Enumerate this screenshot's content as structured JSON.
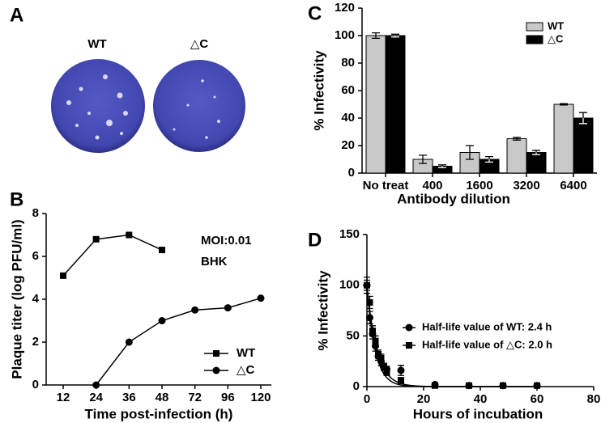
{
  "figure_a": {
    "panel_label": "A",
    "plates": [
      "WT",
      "△C"
    ]
  },
  "chart_data": [
    {
      "type": "line",
      "panel_label": "B",
      "x_label": "Time post-infection (h)",
      "y_label": "Plaque titer (log PFU/ml)",
      "categories": [
        "12",
        "24",
        "36",
        "48",
        "72",
        "96",
        "120"
      ],
      "series": [
        {
          "name": "WT",
          "color": "#000000",
          "marker": "square",
          "values": [
            5.1,
            6.8,
            7.0,
            6.3,
            null,
            null,
            null
          ]
        },
        {
          "name": "△C",
          "color": "#000000",
          "marker": "circle",
          "values": [
            null,
            0,
            2.0,
            3.0,
            3.5,
            3.6,
            4.05
          ]
        }
      ],
      "ylim": [
        0,
        8
      ],
      "yticks": [
        0,
        2,
        4,
        6,
        8
      ],
      "annotations": [
        "MOI:0.01",
        "BHK"
      ],
      "legend": "lower right"
    },
    {
      "type": "bar",
      "panel_label": "C",
      "x_label": "Antibody dilution",
      "y_label": "% Infectivity",
      "categories": [
        "No treat",
        "400",
        "1600",
        "3200",
        "6400"
      ],
      "series": [
        {
          "name": "WT",
          "color": "#c8c8c8",
          "values": [
            100,
            10,
            15,
            25,
            50
          ],
          "errors": [
            2,
            3,
            5,
            1,
            0.5
          ]
        },
        {
          "name": "△C",
          "color": "#000000",
          "values": [
            100,
            5,
            10,
            15,
            40
          ],
          "errors": [
            1,
            1,
            2,
            1.5,
            4
          ]
        }
      ],
      "ylim": [
        0,
        120
      ],
      "yticks": [
        0,
        20,
        40,
        60,
        80,
        100,
        120
      ],
      "legend": "upper right"
    },
    {
      "type": "scatter",
      "panel_label": "D",
      "x_label": "Hours of incubation",
      "y_label": "% Infectivity",
      "series": [
        {
          "name": "Half-life value of WT: 2.4 h",
          "color": "#000000",
          "marker": "circle",
          "half_life": 2.4,
          "x": [
            0,
            1,
            2,
            3,
            4,
            5,
            6,
            7,
            12,
            24,
            36,
            48,
            60
          ],
          "values": [
            100,
            68,
            52,
            40,
            30,
            25,
            19,
            17,
            16,
            2,
            1,
            1,
            1
          ],
          "errors": [
            5,
            6,
            5,
            5,
            4,
            4,
            3,
            3,
            5,
            1,
            1,
            1,
            1
          ]
        },
        {
          "name": "Half-life value of △C: 2.0 h",
          "color": "#000000",
          "marker": "square",
          "half_life": 2.0,
          "x": [
            0,
            1,
            2,
            3,
            4,
            5,
            6,
            7,
            12,
            24,
            36,
            48,
            60
          ],
          "values": [
            100,
            83,
            55,
            45,
            32,
            28,
            20,
            14,
            6,
            1,
            1,
            1,
            1
          ],
          "errors": [
            8,
            6,
            5,
            5,
            4,
            4,
            3,
            3,
            3,
            1,
            1,
            1,
            1
          ]
        }
      ],
      "xlim": [
        0,
        80
      ],
      "xticks": [
        0,
        20,
        40,
        60,
        80
      ],
      "ylim": [
        0,
        150
      ],
      "yticks": [
        0,
        50,
        100,
        150
      ],
      "legend": "center"
    }
  ]
}
